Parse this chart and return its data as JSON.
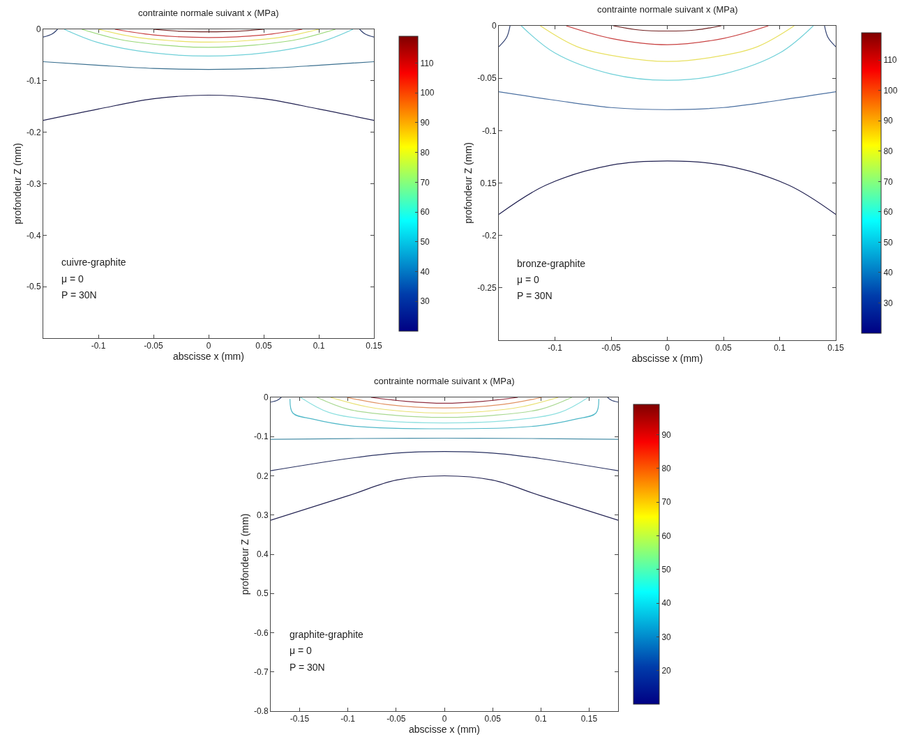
{
  "chart_data": [
    {
      "type": "line",
      "title": "contrainte normale suivant x (MPa)",
      "xlabel": "abscisse x (mm)",
      "ylabel": "profondeur Z (mm)",
      "annotations": [
        "cuivre-graphite",
        "μ = 0",
        "P = 30N"
      ],
      "xlim": [
        -0.15,
        0.15
      ],
      "xticks": [
        -0.1,
        -0.05,
        0,
        0.05,
        0.1,
        0.15
      ],
      "ylim": [
        -0.6,
        0
      ],
      "yticks": [
        -0.5,
        -0.4,
        -0.3,
        -0.2,
        -0.1,
        0
      ],
      "clim": [
        20,
        119
      ],
      "cticks": [
        30,
        40,
        50,
        60,
        70,
        80,
        90,
        100,
        110
      ],
      "series": [
        {
          "color": "#202050",
          "x": [
            -0.15,
            -0.1,
            -0.05,
            0,
            0.05,
            0.1,
            0.15
          ],
          "values": [
            -0.177,
            -0.155,
            -0.135,
            -0.128,
            -0.135,
            -0.155,
            -0.177
          ]
        },
        {
          "color": "#3a6f8f",
          "x": [
            -0.15,
            -0.1,
            -0.05,
            0,
            0.05,
            0.1,
            0.15
          ],
          "values": [
            -0.063,
            -0.07,
            -0.076,
            -0.078,
            -0.076,
            -0.07,
            -0.063
          ]
        },
        {
          "color": "#6fd0d8",
          "x": [
            -0.131,
            -0.1,
            -0.05,
            0,
            0.05,
            0.1,
            0.131
          ],
          "values": [
            0,
            -0.026,
            -0.046,
            -0.052,
            -0.046,
            -0.026,
            0
          ]
        },
        {
          "color": "#9ad878",
          "x": [
            -0.115,
            -0.08,
            -0.04,
            0,
            0.04,
            0.08,
            0.115
          ],
          "values": [
            0,
            -0.02,
            -0.031,
            -0.035,
            -0.031,
            -0.02,
            0
          ]
        },
        {
          "color": "#e8e060",
          "x": [
            -0.1,
            -0.07,
            -0.035,
            0,
            0.035,
            0.07,
            0.1
          ],
          "values": [
            0,
            -0.014,
            -0.022,
            -0.025,
            -0.022,
            -0.014,
            0
          ]
        },
        {
          "color": "#c84040",
          "x": [
            -0.085,
            -0.05,
            0,
            0.05,
            0.085
          ],
          "values": [
            0,
            -0.011,
            -0.016,
            -0.011,
            0
          ]
        },
        {
          "color": "#702020",
          "x": [
            -0.05,
            -0.025,
            0,
            0.025,
            0.05
          ],
          "values": [
            0,
            -0.004,
            -0.005,
            -0.004,
            0
          ]
        },
        {
          "color": "#304070",
          "x": [
            -0.15,
            -0.142,
            -0.137
          ],
          "values": [
            -0.015,
            -0.009,
            0
          ]
        },
        {
          "color": "#304070",
          "x": [
            0.15,
            0.142,
            0.137
          ],
          "values": [
            -0.015,
            -0.009,
            0
          ]
        }
      ]
    },
    {
      "type": "line",
      "title": "contrainte normale suivant x (MPa)",
      "xlabel": "abscisse x (mm)",
      "ylabel": "profondeur Z (mm)",
      "annotations": [
        "bronze-graphite",
        "μ = 0",
        "P = 30N"
      ],
      "xlim": [
        -0.15,
        0.15
      ],
      "xticks": [
        -0.1,
        -0.05,
        0,
        0.05,
        0.1,
        0.15
      ],
      "ylim": [
        -0.3,
        0
      ],
      "yticks": [
        -0.25,
        -0.2,
        {
          "value": -0.15,
          "label": "0.15"
        },
        -0.1,
        -0.05,
        0
      ],
      "clim": [
        20,
        119
      ],
      "cticks": [
        30,
        40,
        50,
        60,
        70,
        80,
        90,
        100,
        110
      ],
      "series": [
        {
          "color": "#202050",
          "x": [
            -0.15,
            -0.108,
            -0.05,
            0,
            0.05,
            0.108,
            0.15
          ],
          "values": [
            -0.18,
            -0.152,
            -0.133,
            -0.129,
            -0.133,
            -0.152,
            -0.18
          ]
        },
        {
          "color": "#4a6fa0",
          "x": [
            -0.15,
            -0.1,
            -0.05,
            0,
            0.05,
            0.1,
            0.15
          ],
          "values": [
            -0.063,
            -0.071,
            -0.078,
            -0.08,
            -0.078,
            -0.071,
            -0.063
          ]
        },
        {
          "color": "#6fd0d8",
          "x": [
            -0.13,
            -0.1,
            -0.05,
            0,
            0.05,
            0.1,
            0.13
          ],
          "values": [
            0,
            -0.026,
            -0.046,
            -0.052,
            -0.046,
            -0.026,
            0
          ]
        },
        {
          "color": "#e8e060",
          "x": [
            -0.113,
            -0.08,
            -0.04,
            0,
            0.04,
            0.08,
            0.113
          ],
          "values": [
            0,
            -0.02,
            -0.03,
            -0.034,
            -0.03,
            -0.02,
            0
          ]
        },
        {
          "color": "#c84040",
          "x": [
            -0.09,
            -0.05,
            0,
            0.05,
            0.09
          ],
          "values": [
            0,
            -0.012,
            -0.018,
            -0.012,
            0
          ]
        },
        {
          "color": "#702020",
          "x": [
            -0.048,
            -0.025,
            0,
            0.025,
            0.048
          ],
          "values": [
            0,
            -0.004,
            -0.005,
            -0.004,
            0
          ]
        },
        {
          "color": "#304070",
          "x": [
            -0.15,
            -0.143,
            -0.14
          ],
          "values": [
            -0.02,
            -0.011,
            0
          ]
        },
        {
          "color": "#304070",
          "x": [
            0.15,
            0.143,
            0.14
          ],
          "values": [
            -0.02,
            -0.011,
            0
          ]
        }
      ]
    },
    {
      "type": "line",
      "title": "contrainte normale suivant x (MPa)",
      "xlabel": "abscisse x (mm)",
      "ylabel": "profondeur Z (mm)",
      "annotations": [
        "graphite-graphite",
        "μ = 0",
        "P = 30N"
      ],
      "xlim": [
        -0.18,
        0.18
      ],
      "xticks": [
        -0.15,
        -0.1,
        -0.05,
        0,
        0.05,
        0.1,
        0.15
      ],
      "ylim": [
        -0.8,
        0
      ],
      "yticks": [
        -0.8,
        -0.7,
        -0.6,
        {
          "value": -0.5,
          "label": "0.5"
        },
        {
          "value": -0.4,
          "label": "0.4"
        },
        {
          "value": -0.3,
          "label": "0.3"
        },
        {
          "value": -0.2,
          "label": "0.2"
        },
        -0.1,
        0
      ],
      "clim": [
        10,
        99
      ],
      "cticks": [
        20,
        30,
        40,
        50,
        60,
        70,
        80,
        90
      ],
      "series": [
        {
          "color": "#202050",
          "x": [
            -0.18,
            -0.1,
            -0.05,
            0,
            0.05,
            0.1,
            0.18
          ],
          "values": [
            -0.313,
            -0.251,
            -0.211,
            -0.2,
            -0.211,
            -0.251,
            -0.313
          ]
        },
        {
          "color": "#283060",
          "x": [
            -0.18,
            -0.1,
            -0.05,
            0,
            0.05,
            0.1,
            0.18
          ],
          "values": [
            -0.187,
            -0.156,
            -0.142,
            -0.138,
            -0.142,
            -0.156,
            -0.187
          ]
        },
        {
          "color": "#4a8fa8",
          "x": [
            -0.18,
            -0.1,
            0,
            0.1,
            0.18
          ],
          "values": [
            -0.107,
            -0.105,
            -0.104,
            -0.105,
            -0.107
          ]
        },
        {
          "color": "#50b8c8",
          "x": [
            -0.16,
            -0.157,
            -0.137,
            -0.095,
            0,
            0.095,
            0.137,
            0.157,
            0.16
          ],
          "values": [
            -0.004,
            -0.04,
            -0.055,
            -0.073,
            -0.08,
            -0.073,
            -0.055,
            -0.04,
            -0.004
          ]
        },
        {
          "color": "#8ee0e0",
          "x": [
            -0.149,
            -0.12,
            -0.07,
            0,
            0.07,
            0.12,
            0.149
          ],
          "values": [
            0,
            -0.038,
            -0.058,
            -0.065,
            -0.058,
            -0.038,
            0
          ]
        },
        {
          "color": "#a8d890",
          "x": [
            -0.132,
            -0.1,
            -0.05,
            0,
            0.05,
            0.1,
            0.132
          ],
          "values": [
            0,
            -0.03,
            -0.046,
            -0.051,
            -0.046,
            -0.03,
            0
          ]
        },
        {
          "color": "#e8e070",
          "x": [
            -0.118,
            -0.08,
            -0.04,
            0,
            0.04,
            0.08,
            0.118
          ],
          "values": [
            0,
            -0.024,
            -0.036,
            -0.04,
            -0.036,
            -0.024,
            0
          ]
        },
        {
          "color": "#e09060",
          "x": [
            -0.101,
            -0.06,
            0,
            0.06,
            0.101
          ],
          "values": [
            0,
            -0.018,
            -0.027,
            -0.018,
            0
          ]
        },
        {
          "color": "#903040",
          "x": [
            -0.076,
            -0.04,
            0,
            0.04,
            0.076
          ],
          "values": [
            0,
            -0.01,
            -0.015,
            -0.01,
            0
          ]
        },
        {
          "color": "#304070",
          "x": [
            -0.18,
            -0.173,
            -0.169
          ],
          "values": [
            -0.012,
            -0.007,
            0
          ]
        },
        {
          "color": "#304070",
          "x": [
            0.18,
            0.173,
            0.169
          ],
          "values": [
            -0.012,
            -0.007,
            0
          ]
        }
      ]
    }
  ]
}
